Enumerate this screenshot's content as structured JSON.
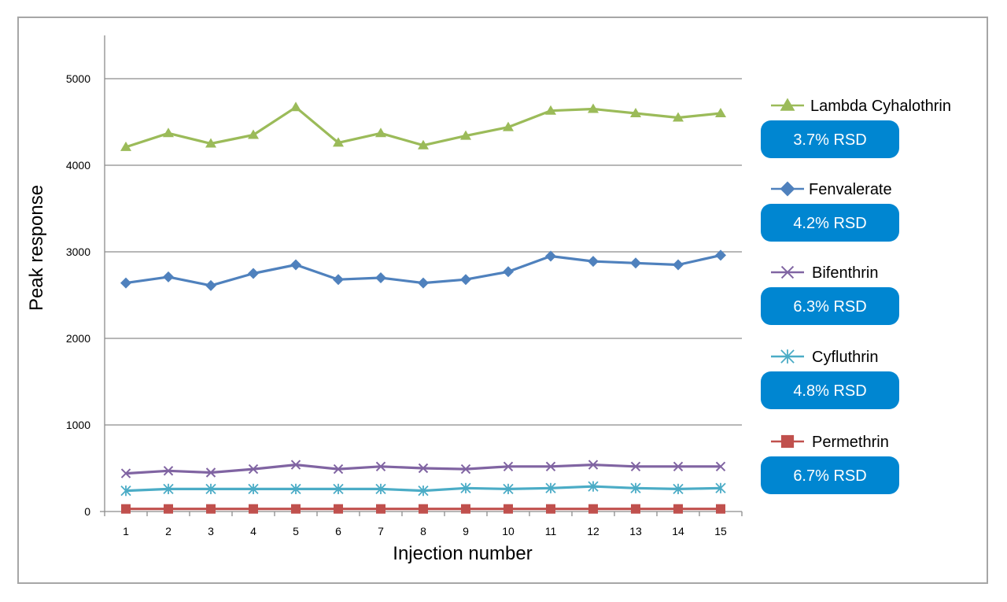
{
  "chart_data": {
    "type": "line",
    "title": "",
    "xlabel": "Injection number",
    "ylabel": "Peak response",
    "x": [
      1,
      2,
      3,
      4,
      5,
      6,
      7,
      8,
      9,
      10,
      11,
      12,
      13,
      14,
      15
    ],
    "ylim": [
      0,
      5500
    ],
    "yticks": [
      0,
      1000,
      2000,
      3000,
      4000,
      5000
    ],
    "grid": "horizontal",
    "legend_position": "right",
    "series": [
      {
        "name": "Lambda Cyhalothrin",
        "rsd": "3.7% RSD",
        "color": "#9bbb59",
        "marker": "triangle",
        "values": [
          4210,
          4370,
          4250,
          4350,
          4670,
          4260,
          4370,
          4230,
          4340,
          4440,
          4630,
          4650,
          4600,
          4550,
          4600
        ]
      },
      {
        "name": "Fenvalerate",
        "rsd": "4.2% RSD",
        "color": "#4f81bd",
        "marker": "diamond",
        "values": [
          2640,
          2710,
          2610,
          2750,
          2850,
          2680,
          2700,
          2640,
          2680,
          2770,
          2950,
          2890,
          2870,
          2850,
          2960
        ]
      },
      {
        "name": "Bifenthrin",
        "rsd": "6.3% RSD",
        "color": "#8064a2",
        "marker": "x",
        "values": [
          440,
          470,
          450,
          490,
          540,
          490,
          520,
          500,
          490,
          520,
          520,
          540,
          520,
          520,
          520
        ]
      },
      {
        "name": "Cyfluthrin",
        "rsd": "4.8% RSD",
        "color": "#4bacc6",
        "marker": "asterisk",
        "values": [
          240,
          260,
          260,
          260,
          260,
          260,
          260,
          240,
          270,
          260,
          270,
          290,
          270,
          260,
          270
        ]
      },
      {
        "name": "Permethrin",
        "rsd": "6.7% RSD",
        "color": "#c0504d",
        "marker": "square",
        "values": [
          30,
          30,
          30,
          30,
          30,
          30,
          30,
          30,
          30,
          30,
          30,
          30,
          30,
          30,
          30
        ]
      }
    ],
    "rsd_box_color": "#0086d1"
  }
}
